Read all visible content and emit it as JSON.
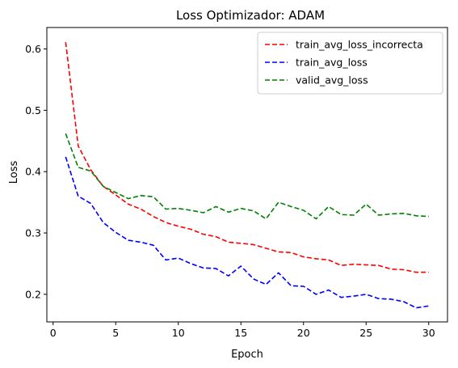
{
  "chart_data": {
    "type": "line",
    "title": "Loss  Optimizador: ADAM",
    "xlabel": "Epoch",
    "ylabel": "Loss",
    "xlim": [
      -0.5,
      31.5
    ],
    "ylim": [
      0.155,
      0.635
    ],
    "xticks": [
      0,
      5,
      10,
      15,
      20,
      25,
      30
    ],
    "yticks": [
      0.2,
      0.3,
      0.4,
      0.5,
      0.6
    ],
    "xtick_labels": [
      "0",
      "5",
      "10",
      "15",
      "20",
      "25",
      "30"
    ],
    "ytick_labels": [
      "0.2",
      "0.3",
      "0.4",
      "0.5",
      "0.6"
    ],
    "grid": false,
    "legend_position": "top-right",
    "x": [
      1,
      2,
      3,
      4,
      5,
      6,
      7,
      8,
      9,
      10,
      11,
      12,
      13,
      14,
      15,
      16,
      17,
      18,
      19,
      20,
      21,
      22,
      23,
      24,
      25,
      26,
      27,
      28,
      29,
      30
    ],
    "series": [
      {
        "name": "train_avg_loss_incorrecta",
        "color": "#ff0000",
        "style": "dashed",
        "values": [
          0.611,
          0.442,
          0.403,
          0.376,
          0.362,
          0.347,
          0.339,
          0.327,
          0.317,
          0.311,
          0.306,
          0.298,
          0.294,
          0.285,
          0.283,
          0.281,
          0.275,
          0.269,
          0.268,
          0.261,
          0.258,
          0.256,
          0.247,
          0.249,
          0.248,
          0.247,
          0.241,
          0.24,
          0.236,
          0.236
        ]
      },
      {
        "name": "train_avg_loss",
        "color": "#0000ff",
        "style": "dashed",
        "values": [
          0.424,
          0.36,
          0.348,
          0.317,
          0.301,
          0.288,
          0.285,
          0.28,
          0.256,
          0.259,
          0.25,
          0.243,
          0.242,
          0.23,
          0.246,
          0.225,
          0.216,
          0.235,
          0.214,
          0.213,
          0.2,
          0.207,
          0.195,
          0.197,
          0.2,
          0.193,
          0.192,
          0.188,
          0.178,
          0.181
        ]
      },
      {
        "name": "valid_avg_loss",
        "color": "#008000",
        "style": "dashed",
        "values": [
          0.462,
          0.407,
          0.401,
          0.376,
          0.366,
          0.356,
          0.361,
          0.359,
          0.339,
          0.34,
          0.337,
          0.333,
          0.343,
          0.334,
          0.34,
          0.336,
          0.323,
          0.35,
          0.343,
          0.337,
          0.323,
          0.343,
          0.33,
          0.329,
          0.347,
          0.329,
          0.331,
          0.332,
          0.328,
          0.327
        ]
      }
    ]
  }
}
